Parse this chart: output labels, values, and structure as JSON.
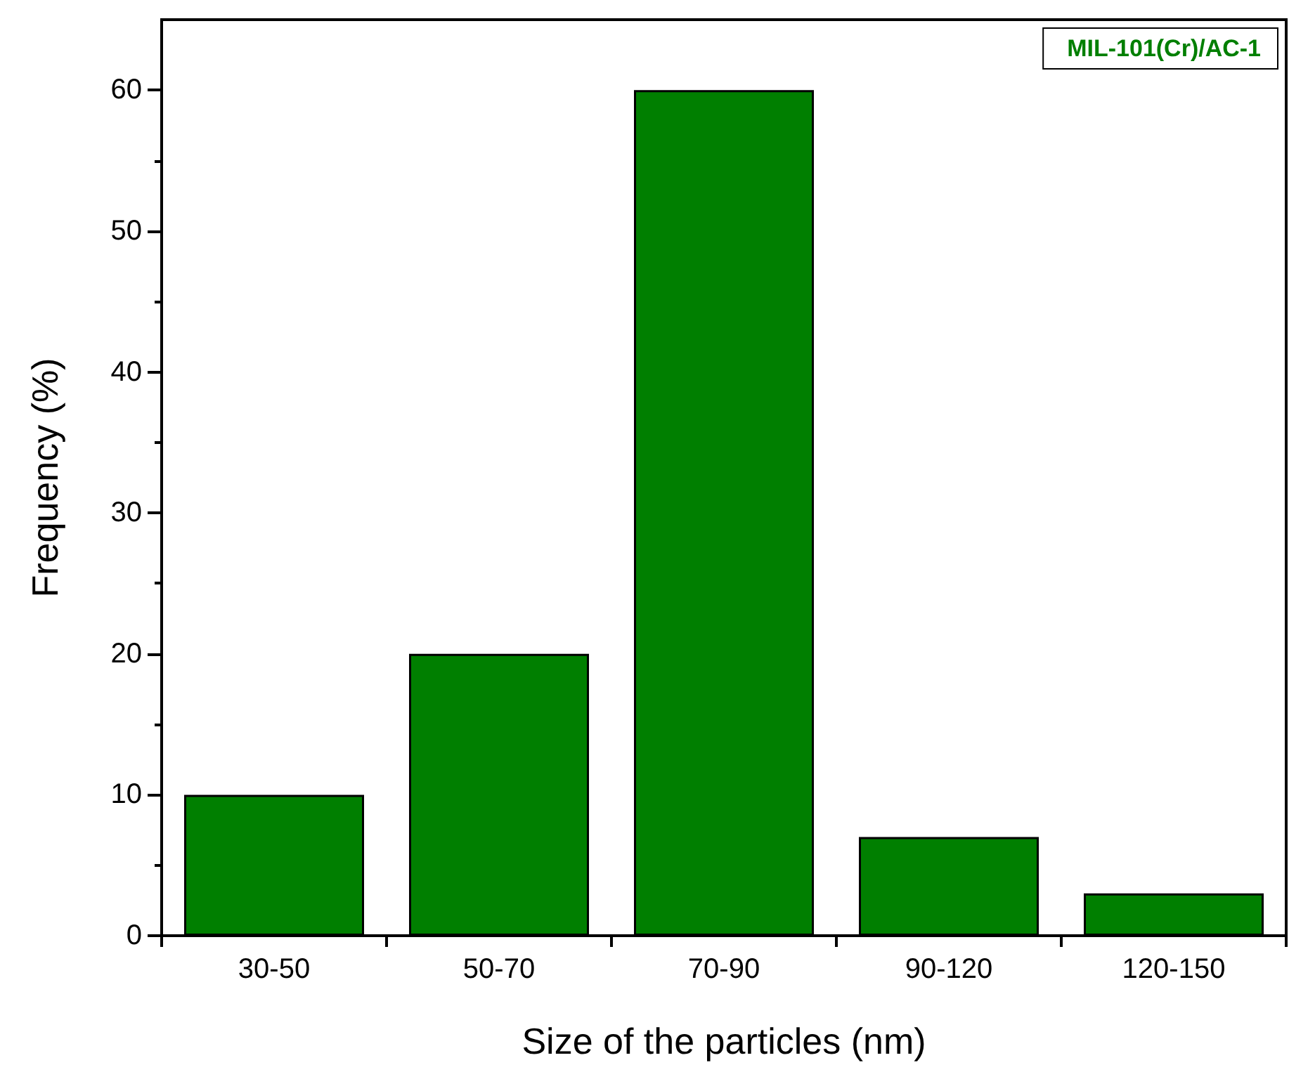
{
  "chart_data": {
    "type": "bar",
    "xlabel": "Size of the particles (nm)",
    "ylabel": "Frequency (%)",
    "categories": [
      "30-50",
      "50-70",
      "70-90",
      "90-120",
      "120-150"
    ],
    "series": [
      {
        "name": "MIL-101(Cr)/AC-1",
        "color": "#007f00",
        "values": [
          10,
          20,
          60,
          7,
          3
        ]
      }
    ],
    "ylim": [
      0,
      65
    ],
    "yticks": [
      0,
      10,
      20,
      30,
      40,
      50,
      60
    ],
    "grid": false,
    "legend": "top right"
  }
}
